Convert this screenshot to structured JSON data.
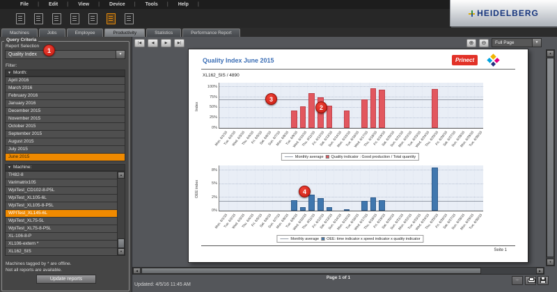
{
  "menu": {
    "items": [
      "File",
      "Edit",
      "View",
      "Device",
      "Tools",
      "Help"
    ]
  },
  "logo": {
    "brand": "HEIDELBERG"
  },
  "toolbar": {
    "icons": [
      {
        "name": "document-report-icon",
        "active": false
      },
      {
        "name": "bar-chart-icon",
        "active": false
      },
      {
        "name": "printer-settings-icon",
        "active": false
      },
      {
        "name": "press-machine-icon",
        "active": false
      },
      {
        "name": "document-export-icon",
        "active": false
      },
      {
        "name": "performance-report-icon",
        "active": true
      },
      {
        "name": "document-list-icon",
        "active": false
      }
    ]
  },
  "tabs": [
    {
      "label": "Machines",
      "active": false
    },
    {
      "label": "Jobs",
      "active": false
    },
    {
      "label": "Employee",
      "active": false
    },
    {
      "label": "Productivity",
      "active": true
    },
    {
      "label": "Statistics",
      "active": false
    },
    {
      "label": "Performance Report",
      "active": false
    }
  ],
  "sidebar": {
    "group_title": "Query Criteria",
    "report_selection_label": "Report Selection",
    "report_selection_value": "Quality Index",
    "filter_label": "Filter:",
    "month_section_label": "Month:",
    "months": [
      {
        "label": "April 2016",
        "selected": false
      },
      {
        "label": "March 2016",
        "selected": false
      },
      {
        "label": "February 2016",
        "selected": false
      },
      {
        "label": "January 2016",
        "selected": false
      },
      {
        "label": "December 2015",
        "selected": false
      },
      {
        "label": "November 2015",
        "selected": false
      },
      {
        "label": "October 2015",
        "selected": false
      },
      {
        "label": "September 2015",
        "selected": false
      },
      {
        "label": "August 2015",
        "selected": false
      },
      {
        "label": "July 2015",
        "selected": false
      },
      {
        "label": "June 2015",
        "selected": true
      }
    ],
    "machine_section_label": "Machine:",
    "machines": [
      {
        "label": "TH82-8",
        "selected": false
      },
      {
        "label": "Varimatrix105",
        "selected": false
      },
      {
        "label": "WpiTest_CD102-8-P5L",
        "selected": false
      },
      {
        "label": "WpiTest_XL105-6L",
        "selected": false
      },
      {
        "label": "WpiTest_XL105-8-P5L",
        "selected": false
      },
      {
        "label": "WPITest_XL145-6L",
        "selected": true
      },
      {
        "label": "WpiTest_XL75-5L",
        "selected": false
      },
      {
        "label": "WpiTest_XL75-8-P5L",
        "selected": false
      },
      {
        "label": "XL-106-8-P",
        "selected": false
      },
      {
        "label": "XL106-extern *",
        "selected": false
      },
      {
        "label": "XL162_SIS",
        "selected": false
      }
    ],
    "note_line1": "Machines tagged by * are offline.",
    "note_line2": "Not all reports are available.",
    "update_button_label": "Update reports"
  },
  "preview": {
    "zoom_value": "Full Page",
    "page_indicator": "Page 1 of 1",
    "updated_label": "Updated: 4/5/16 11:45 AM"
  },
  "report": {
    "title": "Quality Index June 2015",
    "subtitle": "XL162_SIS / 4890",
    "brand": "Prinect",
    "page_label": "Seite 1"
  },
  "callouts": [
    "1",
    "2",
    "3",
    "4"
  ],
  "chart_data": [
    {
      "type": "bar",
      "name": "quality-index-chart",
      "ylabel": "Index",
      "categories": [
        "Mon. 6/1/15",
        "Tue. 6/2/15",
        "Wed. 6/3/15",
        "Thu. 6/4/15",
        "Fri. 6/5/15",
        "Sat. 6/6/15",
        "Sun. 6/7/15",
        "Mon. 6/8/15",
        "Tue. 6/9/15",
        "Wed. 6/10/15",
        "Thu. 6/11/15",
        "Fri. 6/12/15",
        "Sat. 6/13/15",
        "Sun. 6/14/15",
        "Mon. 6/15/15",
        "Tue. 6/16/15",
        "Wed. 6/17/15",
        "Thu. 6/18/15",
        "Fri. 6/19/15",
        "Sat. 6/20/15",
        "Sun. 6/21/15",
        "Mon. 6/22/15",
        "Tue. 6/23/15",
        "Wed. 6/24/15",
        "Thu. 6/25/15",
        "Fri. 6/26/15",
        "Sat. 6/27/15",
        "Sun. 6/28/15",
        "Mon. 6/29/15",
        "Tue. 6/30/15"
      ],
      "values": [
        0,
        0,
        0,
        0,
        0,
        0,
        0,
        0,
        43,
        53,
        85,
        74,
        55,
        0,
        43,
        0,
        70,
        97,
        93,
        0,
        0,
        0,
        0,
        0,
        94,
        0,
        0,
        0,
        0,
        0
      ],
      "monthly_average": 69,
      "ylim": [
        0,
        110
      ],
      "yticks": [
        {
          "v": 0,
          "label": "0%"
        },
        {
          "v": 25,
          "label": "25%"
        },
        {
          "v": 50,
          "label": "50%"
        },
        {
          "v": 75,
          "label": "75%"
        },
        {
          "v": 100,
          "label": "100%"
        }
      ],
      "bar_color": "#e2575e",
      "bar_border": "#bf4048",
      "legend": {
        "line_label": "Monthly average",
        "series_label": "Quality indicator : Good production / Total quantity"
      }
    },
    {
      "type": "bar",
      "name": "oee-index-chart",
      "ylabel": "OEE index",
      "categories": [
        "Mon. 6/1/15",
        "Tue. 6/2/15",
        "Wed. 6/3/15",
        "Thu. 6/4/15",
        "Fri. 6/5/15",
        "Sat. 6/6/15",
        "Sun. 6/7/15",
        "Mon. 6/8/15",
        "Tue. 6/9/15",
        "Wed. 6/10/15",
        "Thu. 6/11/15",
        "Fri. 6/12/15",
        "Sat. 6/13/15",
        "Sun. 6/14/15",
        "Mon. 6/15/15",
        "Tue. 6/16/15",
        "Wed. 6/17/15",
        "Thu. 6/18/15",
        "Fri. 6/19/15",
        "Sat. 6/20/15",
        "Sun. 6/21/15",
        "Mon. 6/22/15",
        "Tue. 6/23/15",
        "Wed. 6/24/15",
        "Thu. 6/25/15",
        "Fri. 6/26/15",
        "Sat. 6/27/15",
        "Sun. 6/28/15",
        "Mon. 6/29/15",
        "Tue. 6/30/15"
      ],
      "values": [
        0,
        0,
        0,
        0,
        0,
        0,
        0,
        0,
        1.9,
        0.7,
        3.0,
        2.3,
        0.6,
        0,
        0.3,
        0,
        1.8,
        2.5,
        2.0,
        0,
        0,
        0,
        0,
        0,
        8.0,
        0,
        0,
        0,
        0,
        0
      ],
      "monthly_average": 1.8,
      "ylim": [
        0,
        8.4
      ],
      "yticks": [
        {
          "v": 0,
          "label": "0%"
        },
        {
          "v": 2.5,
          "label": "2%"
        },
        {
          "v": 5,
          "label": "5%"
        },
        {
          "v": 7.5,
          "label": "8%"
        }
      ],
      "bar_color": "#4077ae",
      "bar_border": "#2d5b8c",
      "legend": {
        "line_label": "Monthly average",
        "series_label": "OEE: time indicator x speed indicator x quality indicator"
      }
    }
  ]
}
